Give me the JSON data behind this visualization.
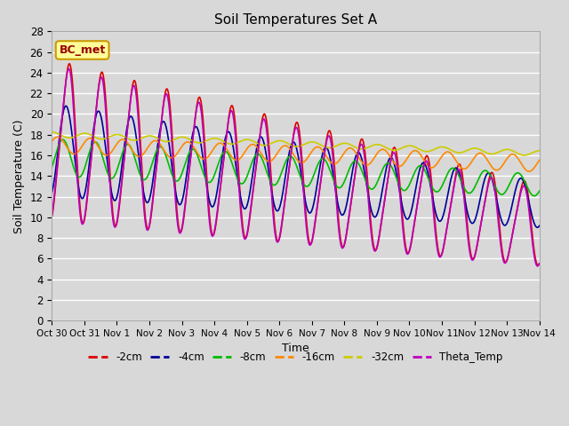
{
  "title": "Soil Temperatures Set A",
  "xlabel": "Time",
  "ylabel": "Soil Temperature (C)",
  "ylim": [
    0,
    28
  ],
  "background_color": "#d8d8d8",
  "plot_bg_color": "#d8d8d8",
  "xtick_labels": [
    "Oct 30",
    "Oct 31",
    "Nov 1",
    "Nov 2",
    "Nov 3",
    "Nov 4",
    "Nov 5",
    "Nov 6",
    "Nov 7",
    "Nov 8",
    "Nov 9",
    "Nov 10",
    "Nov 11",
    "Nov 12",
    "Nov 13",
    "Nov 14"
  ],
  "series": [
    {
      "label": "-2cm",
      "color": "#dd0000",
      "lw": 1.2
    },
    {
      "label": "-4cm",
      "color": "#000099",
      "lw": 1.2
    },
    {
      "label": "-8cm",
      "color": "#00bb00",
      "lw": 1.2
    },
    {
      "label": "-16cm",
      "color": "#ff8800",
      "lw": 1.2
    },
    {
      "label": "-32cm",
      "color": "#cccc00",
      "lw": 1.2
    },
    {
      "label": "Theta_Temp",
      "color": "#bb00bb",
      "lw": 1.2
    }
  ],
  "legend_label": "BC_met",
  "legend_label_color": "#990000",
  "legend_bg": "#ffff99",
  "legend_border": "#cc9900"
}
